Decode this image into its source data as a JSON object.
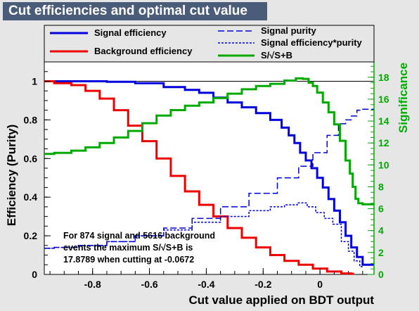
{
  "window": {
    "title": "Cut efficiencies and optimal cut value"
  },
  "chart_data": {
    "type": "line",
    "title": "Cut efficiencies and optimal cut value",
    "xlabel": "Cut value applied on BDT output",
    "ylabel": "Efficiency (Purity)",
    "y2label": "Significance",
    "xlim": [
      -0.97,
      0.19
    ],
    "ylim": [
      0,
      1.1
    ],
    "y2lim": [
      0,
      19.4
    ],
    "xticks": [
      -0.8,
      -0.6,
      -0.4,
      -0.2,
      0
    ],
    "xtick_labels": [
      "-0.8",
      "-0.6",
      "-0.4",
      "-0.2",
      "0"
    ],
    "yticks": [
      0,
      0.2,
      0.4,
      0.6,
      0.8,
      1
    ],
    "ytick_labels": [
      "0",
      "0.2",
      "0.4",
      "0.6",
      "0.8",
      "1"
    ],
    "y2ticks": [
      0,
      2,
      4,
      6,
      8,
      10,
      12,
      14,
      16,
      18
    ],
    "y2tick_labels": [
      "0",
      "2",
      "4",
      "6",
      "8",
      "10",
      "12",
      "14",
      "16",
      "18"
    ],
    "legend_position": "top",
    "series": [
      {
        "name": "Signal efficiency",
        "axis": "left",
        "color": "#0000dd",
        "dash": "solid",
        "width": 3,
        "x": [
          -0.97,
          -0.9,
          -0.8,
          -0.7,
          -0.6,
          -0.5,
          -0.45,
          -0.4,
          -0.35,
          -0.3,
          -0.25,
          -0.2,
          -0.15,
          -0.12,
          -0.1,
          -0.08,
          -0.06,
          -0.04,
          -0.02,
          0,
          0.02,
          0.04,
          0.06,
          0.08,
          0.1,
          0.12,
          0.14,
          0.16,
          0.19
        ],
        "y": [
          1.0,
          1.0,
          1.0,
          0.997,
          0.99,
          0.97,
          0.955,
          0.94,
          0.915,
          0.89,
          0.865,
          0.835,
          0.8,
          0.76,
          0.72,
          0.68,
          0.63,
          0.59,
          0.55,
          0.5,
          0.45,
          0.39,
          0.33,
          0.27,
          0.2,
          0.14,
          0.09,
          0.05,
          0.05
        ]
      },
      {
        "name": "Background efficiency",
        "axis": "left",
        "color": "#ee0000",
        "dash": "solid",
        "width": 3,
        "x": [
          -0.97,
          -0.9,
          -0.85,
          -0.8,
          -0.75,
          -0.7,
          -0.65,
          -0.6,
          -0.55,
          -0.5,
          -0.45,
          -0.4,
          -0.35,
          -0.3,
          -0.25,
          -0.2,
          -0.15,
          -0.1,
          -0.05,
          0,
          0.05,
          0.1,
          0.12
        ],
        "y": [
          1.0,
          0.99,
          0.98,
          0.95,
          0.91,
          0.85,
          0.77,
          0.69,
          0.6,
          0.51,
          0.43,
          0.36,
          0.3,
          0.24,
          0.19,
          0.14,
          0.1,
          0.07,
          0.05,
          0.03,
          0.015,
          0.005,
          0.003
        ]
      },
      {
        "name": "Signal purity",
        "axis": "left",
        "color": "#0000dd",
        "dash": "long",
        "width": 1.5,
        "x": [
          -0.97,
          -0.9,
          -0.8,
          -0.7,
          -0.6,
          -0.5,
          -0.4,
          -0.3,
          -0.2,
          -0.1,
          -0.05,
          0,
          0.05,
          0.08,
          0.1,
          0.12,
          0.14,
          0.16,
          0.19
        ],
        "y": [
          0.135,
          0.14,
          0.15,
          0.17,
          0.2,
          0.24,
          0.29,
          0.35,
          0.42,
          0.5,
          0.56,
          0.63,
          0.72,
          0.78,
          0.8,
          0.82,
          0.85,
          0.855,
          0.855
        ]
      },
      {
        "name": "Signal efficiency*purity",
        "axis": "left",
        "color": "#0000dd",
        "dash": "short",
        "width": 1.5,
        "x": [
          -0.97,
          -0.9,
          -0.8,
          -0.7,
          -0.6,
          -0.5,
          -0.4,
          -0.3,
          -0.2,
          -0.15,
          -0.1,
          -0.06,
          -0.03,
          0,
          0.03,
          0.06,
          0.09,
          0.11,
          0.13,
          0.15
        ],
        "y": [
          0.135,
          0.14,
          0.15,
          0.17,
          0.2,
          0.23,
          0.27,
          0.3,
          0.33,
          0.35,
          0.36,
          0.37,
          0.35,
          0.32,
          0.29,
          0.26,
          0.17,
          0.12,
          0.07,
          0.04
        ]
      },
      {
        "name": "S/√S+B",
        "axis": "right",
        "color": "#00aa00",
        "dash": "solid",
        "width": 3,
        "x": [
          -0.97,
          -0.9,
          -0.85,
          -0.8,
          -0.75,
          -0.7,
          -0.65,
          -0.6,
          -0.55,
          -0.5,
          -0.45,
          -0.4,
          -0.35,
          -0.3,
          -0.25,
          -0.2,
          -0.15,
          -0.1,
          -0.07,
          -0.05,
          -0.03,
          -0.02,
          0,
          0.02,
          0.04,
          0.06,
          0.08,
          0.1,
          0.11,
          0.12,
          0.13,
          0.14,
          0.16,
          0.19
        ],
        "y": [
          11.0,
          11.1,
          11.3,
          11.6,
          12.0,
          12.5,
          13.1,
          13.8,
          14.5,
          15.0,
          15.4,
          15.7,
          16.1,
          16.5,
          16.9,
          17.2,
          17.4,
          17.7,
          17.9,
          17.85,
          17.5,
          17.2,
          16.6,
          15.7,
          14.8,
          13.7,
          12.2,
          10.4,
          9.2,
          8.0,
          6.9,
          6.5,
          6.4,
          6.4
        ]
      }
    ],
    "reference_line": {
      "y": 1
    },
    "annotation": [
      "For 874 signal and 5616 background",
      "events the maximum S/√S+B is",
      "17.8789 when cutting at -0.0672"
    ]
  }
}
